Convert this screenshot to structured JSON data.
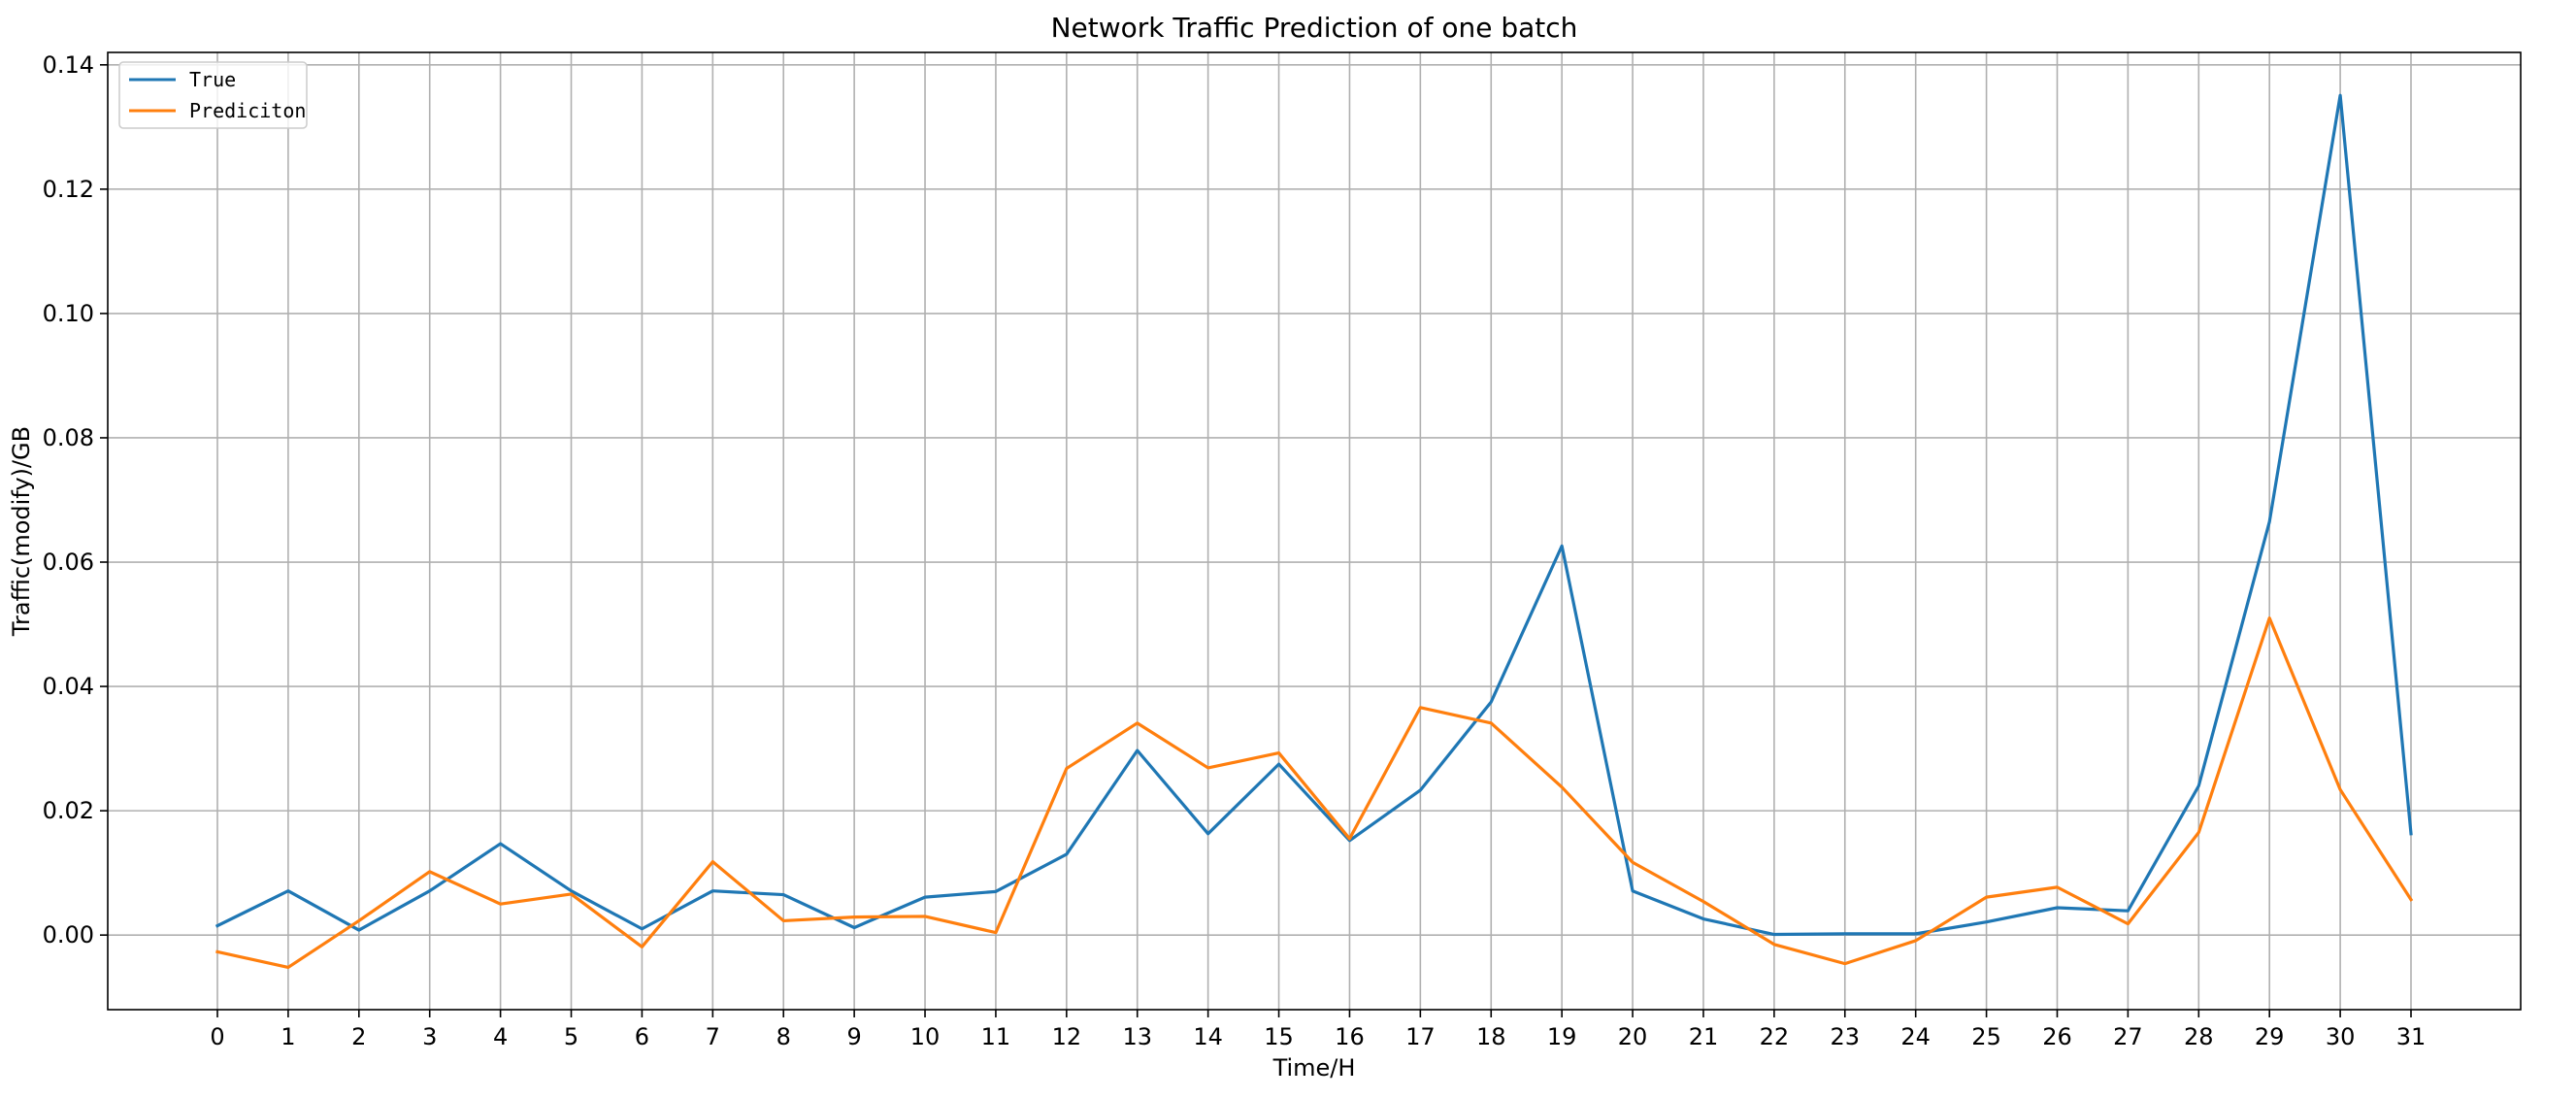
{
  "chart_data": {
    "type": "line",
    "title": "Network Traffic Prediction of one batch",
    "xlabel": "Time/H",
    "ylabel": "Traffic(modify)/GB",
    "x": [
      0,
      1,
      2,
      3,
      4,
      5,
      6,
      7,
      8,
      9,
      10,
      11,
      12,
      13,
      14,
      15,
      16,
      17,
      18,
      19,
      20,
      21,
      22,
      23,
      24,
      25,
      26,
      27,
      28,
      29,
      30,
      31
    ],
    "xlim": [
      -1.55,
      32.55
    ],
    "ylim": [
      -0.012,
      0.142
    ],
    "yticks": [
      0.0,
      0.02,
      0.04,
      0.06,
      0.08,
      0.1,
      0.12,
      0.14
    ],
    "ytick_labels": [
      "0.00",
      "0.02",
      "0.04",
      "0.06",
      "0.08",
      "0.10",
      "0.12",
      "0.14"
    ],
    "xtick_labels": [
      "0",
      "1",
      "2",
      "3",
      "4",
      "5",
      "6",
      "7",
      "8",
      "9",
      "10",
      "11",
      "12",
      "13",
      "14",
      "15",
      "16",
      "17",
      "18",
      "19",
      "20",
      "21",
      "22",
      "23",
      "24",
      "25",
      "26",
      "27",
      "28",
      "29",
      "30",
      "31"
    ],
    "grid": true,
    "legend_position": "top-left",
    "series": [
      {
        "name": "True",
        "color": "#1f77b4",
        "values": [
          0.0015,
          0.0071,
          0.0008,
          0.0071,
          0.0147,
          0.0071,
          0.001,
          0.0071,
          0.0065,
          0.0012,
          0.0061,
          0.007,
          0.013,
          0.0297,
          0.0163,
          0.0275,
          0.0152,
          0.0233,
          0.0375,
          0.0626,
          0.0071,
          0.0026,
          0.0001,
          0.0002,
          0.0002,
          0.0021,
          0.0044,
          0.0039,
          0.024,
          0.0665,
          0.1351,
          0.0163
        ]
      },
      {
        "name": "Prediciton",
        "color": "#ff7f0e",
        "values": [
          -0.0027,
          -0.0052,
          0.0023,
          0.0102,
          0.005,
          0.0066,
          -0.0019,
          0.0118,
          0.0023,
          0.0029,
          0.003,
          0.0004,
          0.0268,
          0.0341,
          0.0269,
          0.0293,
          0.0155,
          0.0366,
          0.0341,
          0.0238,
          0.0117,
          0.0054,
          -0.0015,
          -0.0046,
          -0.0009,
          0.0061,
          0.0077,
          0.0018,
          0.0165,
          0.051,
          0.0234,
          0.0057
        ]
      }
    ]
  }
}
